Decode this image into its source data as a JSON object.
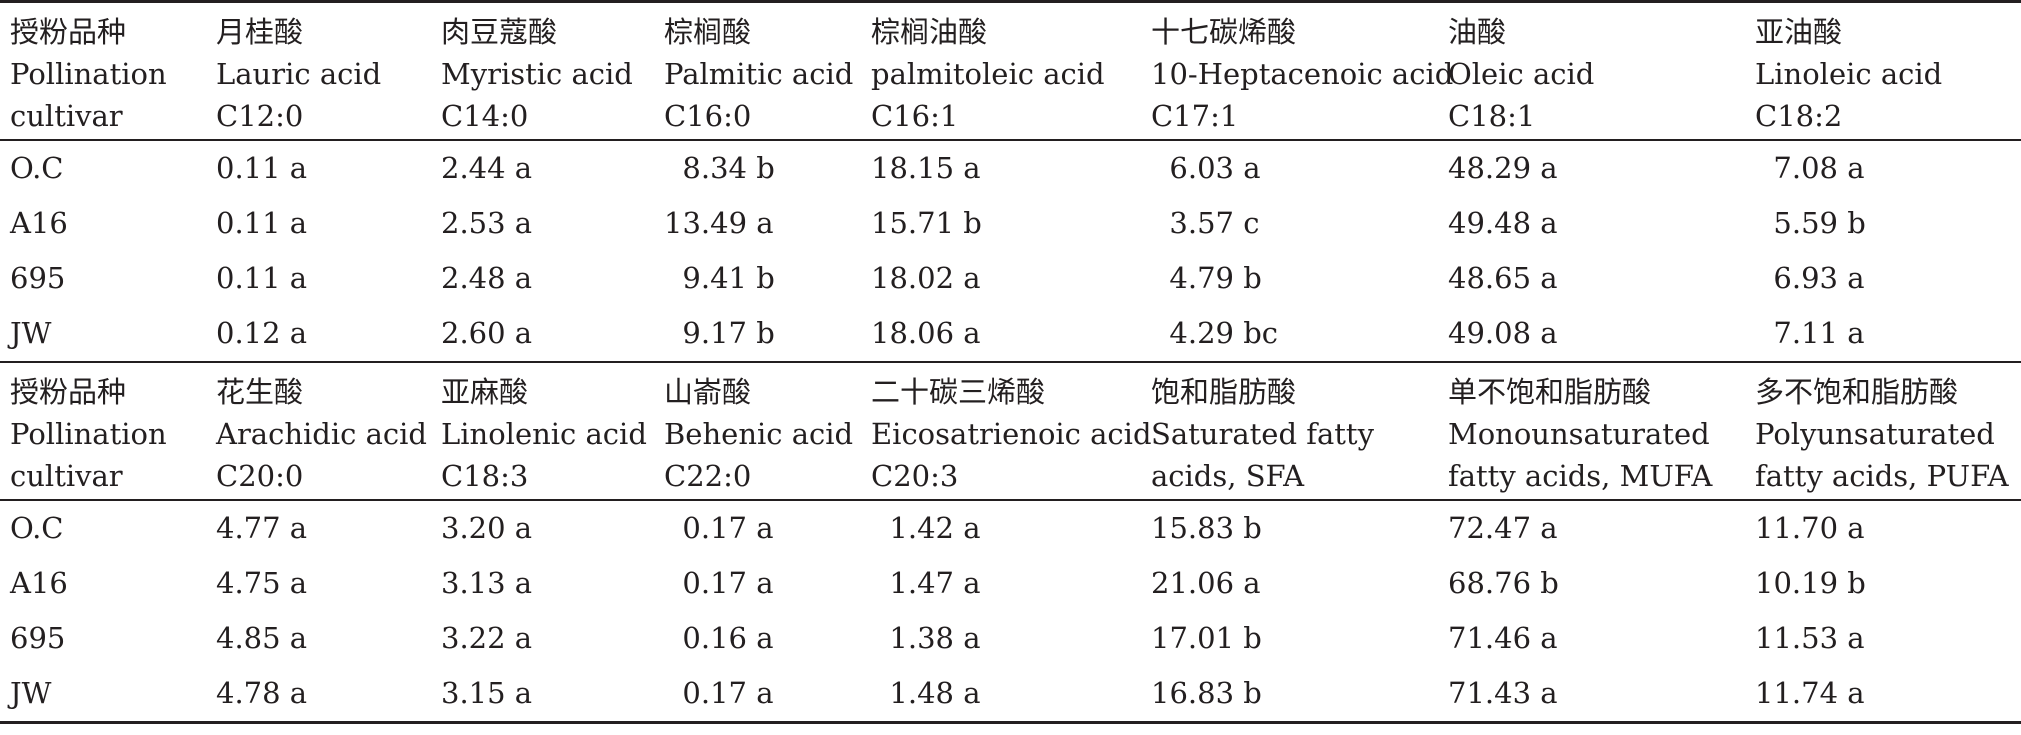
{
  "table": {
    "upper": {
      "header": [
        [
          "授粉品种",
          "Pollination",
          "cultivar"
        ],
        [
          "月桂酸",
          "Lauric acid",
          "C12:0"
        ],
        [
          "肉豆蔻酸",
          "Myristic acid",
          "C14:0"
        ],
        [
          "棕榈酸",
          "Palmitic acid",
          "C16:0"
        ],
        [
          "棕榈油酸",
          "palmitoleic acid",
          "C16:1"
        ],
        [
          "十七碳烯酸",
          "10-Heptacenoic acid",
          "C17:1"
        ],
        [
          "油酸",
          "Oleic acid",
          "C18:1"
        ],
        [
          "亚油酸",
          "Linoleic acid",
          "C18:2"
        ]
      ],
      "rows": [
        [
          "O.C",
          "0.11 a",
          "2.44 a",
          "  8.34 b",
          "18.15 a",
          "  6.03 a",
          "48.29 a",
          "  7.08 a"
        ],
        [
          "A16",
          "0.11 a",
          "2.53 a",
          "13.49 a",
          "15.71 b",
          "  3.57 c",
          "49.48 a",
          "  5.59 b"
        ],
        [
          "695",
          "0.11 a",
          "2.48 a",
          "  9.41 b",
          "18.02 a",
          "  4.79 b",
          "48.65 a",
          "  6.93 a"
        ],
        [
          "JW",
          "0.12 a",
          "2.60 a",
          "  9.17 b",
          "18.06 a",
          "  4.29 bc",
          "49.08 a",
          "  7.11 a"
        ]
      ]
    },
    "lower": {
      "header": [
        [
          "授粉品种",
          "Pollination",
          "cultivar"
        ],
        [
          "花生酸",
          "Arachidic acid",
          "C20:0"
        ],
        [
          "亚麻酸",
          "Linolenic acid",
          "C18:3"
        ],
        [
          "山嵛酸",
          "Behenic acid",
          "C22:0"
        ],
        [
          "二十碳三烯酸",
          "Eicosatrienoic acid",
          "C20:3"
        ],
        [
          "饱和脂肪酸",
          "Saturated fatty",
          "acids, SFA"
        ],
        [
          "单不饱和脂肪酸",
          "Monounsaturated",
          "fatty acids, MUFA"
        ],
        [
          "多不饱和脂肪酸",
          "Polyunsaturated",
          "fatty acids, PUFA"
        ]
      ],
      "rows": [
        [
          "O.C",
          "4.77 a",
          "3.20 a",
          "  0.17 a",
          "  1.42 a",
          "15.83 b",
          "72.47 a",
          "11.70 a"
        ],
        [
          "A16",
          "4.75 a",
          "3.13 a",
          "  0.17 a",
          "  1.47 a",
          "21.06 a",
          "68.76 b",
          "10.19 b"
        ],
        [
          "695",
          "4.85 a",
          "3.22 a",
          "  0.16 a",
          "  1.38 a",
          "17.01 b",
          "71.46 a",
          "11.53 a"
        ],
        [
          "JW",
          "4.78 a",
          "3.15 a",
          "  0.17 a",
          "  1.48 a",
          "16.83 b",
          "71.43 a",
          "11.74 a"
        ]
      ]
    }
  }
}
